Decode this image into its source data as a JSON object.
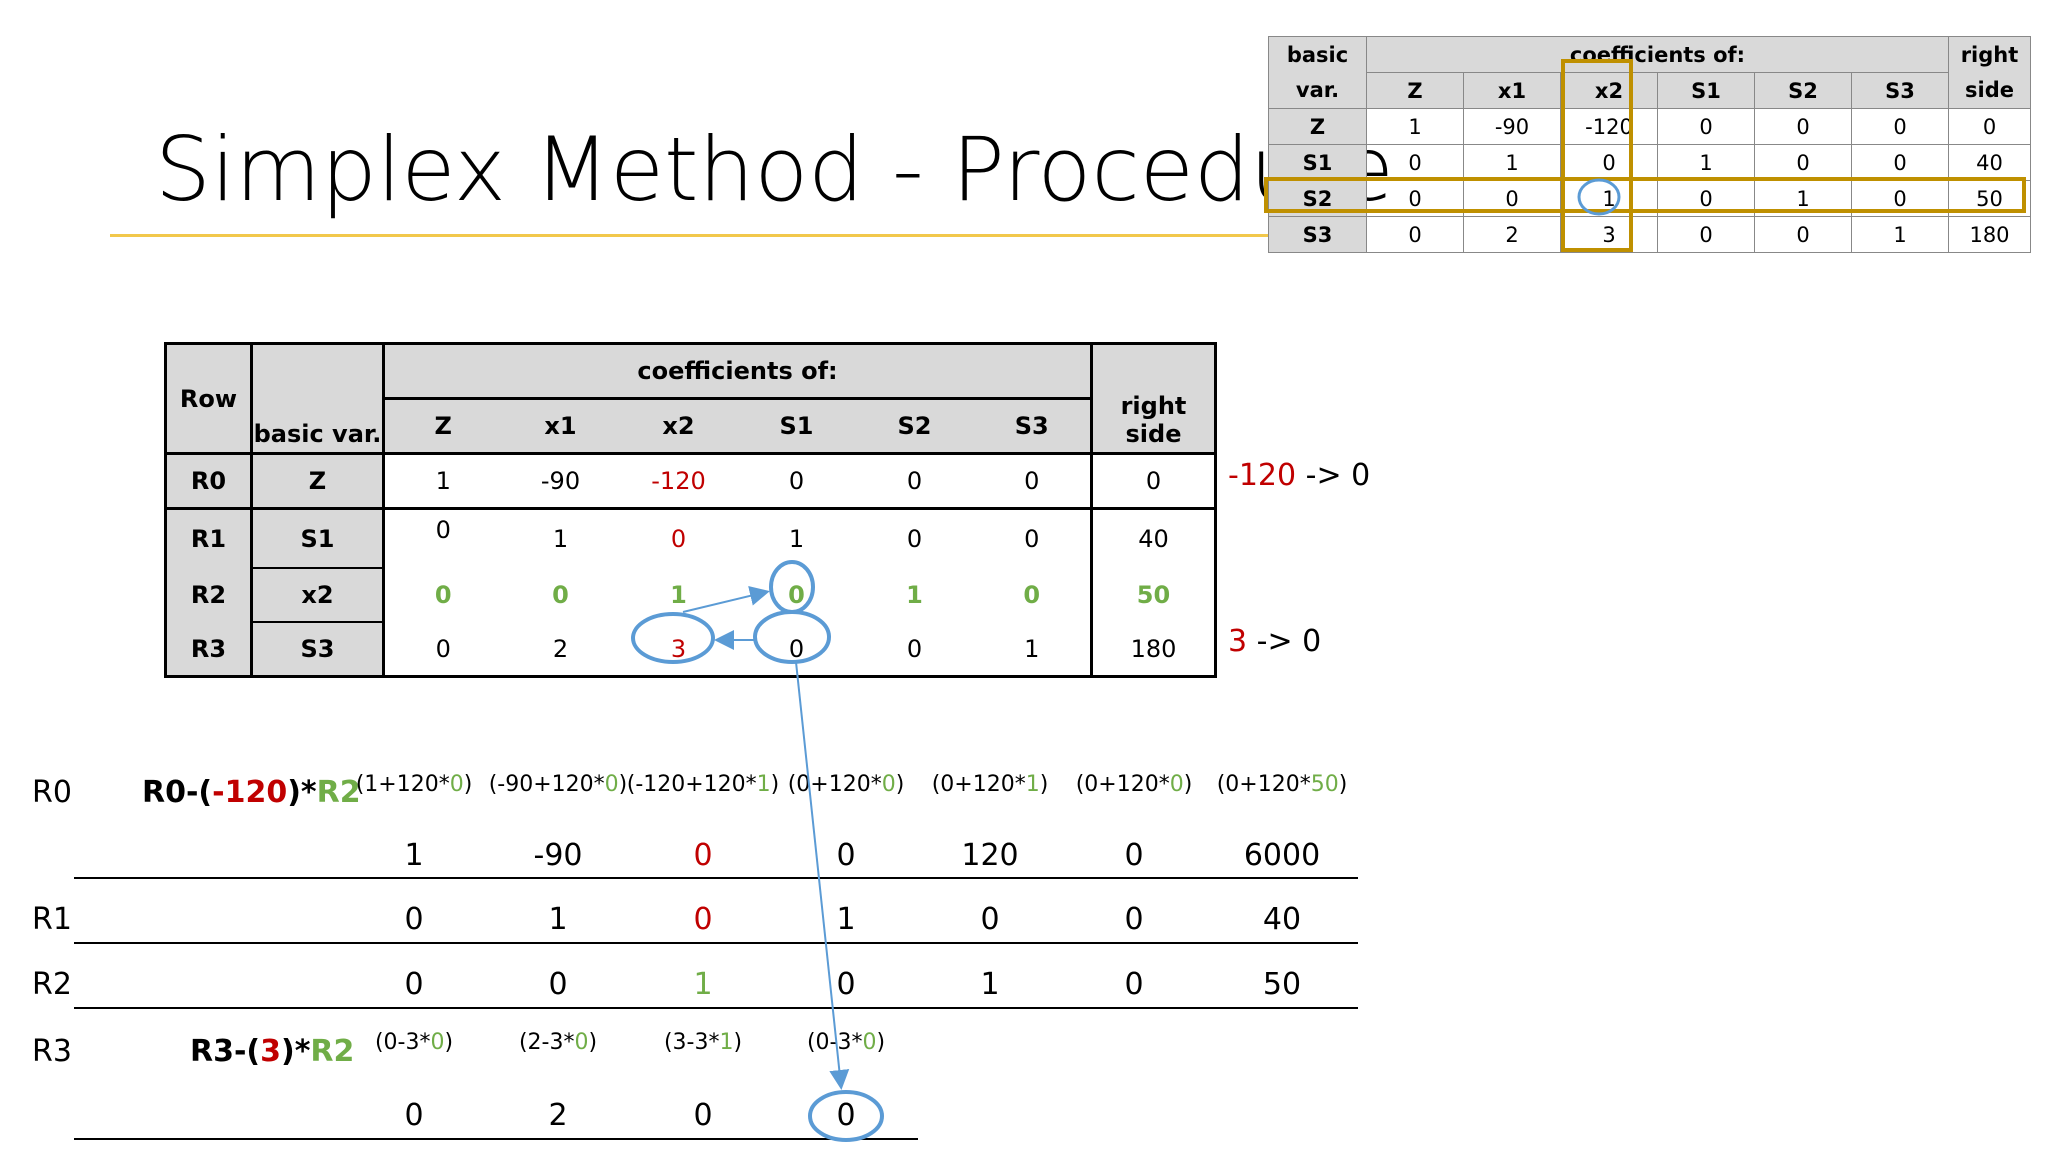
{
  "title": "Simplex Method - Procedure",
  "mini_table": {
    "headers": [
      "basic var.",
      "coefficients of:",
      "right side"
    ],
    "basic_label_1": "basic",
    "basic_label_2": "var.",
    "coef_label": "coefficients of:",
    "rhs_label_1": "right",
    "rhs_label_2": "side",
    "columns": [
      "Z",
      "x1",
      "x2",
      "S1",
      "S2",
      "S3"
    ],
    "rows": [
      {
        "basic": "Z",
        "values": [
          "1",
          "-90",
          "-120",
          "0",
          "0",
          "0"
        ],
        "rhs": "0"
      },
      {
        "basic": "S1",
        "values": [
          "0",
          "1",
          "0",
          "1",
          "0",
          "0"
        ],
        "rhs": "40"
      },
      {
        "basic": "S2",
        "values": [
          "0",
          "0",
          "1",
          "0",
          "1",
          "0"
        ],
        "rhs": "50"
      },
      {
        "basic": "S3",
        "values": [
          "0",
          "2",
          "3",
          "0",
          "0",
          "1"
        ],
        "rhs": "180"
      }
    ],
    "highlight_color": "#bf9000"
  },
  "main_table": {
    "row_label": "Row",
    "basic_label": "basic var.",
    "coef_label": "coefficients of:",
    "rhs_label": "right side",
    "columns": [
      "Z",
      "x1",
      "x2",
      "S1",
      "S2",
      "S3"
    ],
    "rows": [
      {
        "row": "R0",
        "basic": "Z",
        "values": [
          "1",
          "-90",
          "-120",
          "0",
          "0",
          "0"
        ],
        "rhs": "0"
      },
      {
        "row": "R1",
        "basic": "S1",
        "values": [
          "0",
          "1",
          "0",
          "1",
          "0",
          "0"
        ],
        "rhs": "40"
      },
      {
        "row": "R2",
        "basic": "x2",
        "values": [
          "0",
          "0",
          "1",
          "0",
          "1",
          "0"
        ],
        "rhs": "50"
      },
      {
        "row": "R3",
        "basic": "S3",
        "values": [
          "0",
          "2",
          "3",
          "0",
          "0",
          "1"
        ],
        "rhs": "180"
      }
    ],
    "note_r0": {
      "from": "-120",
      "arrow": " -> 0"
    },
    "note_r3": {
      "from": "3",
      "arrow": " -> 0"
    }
  },
  "computation": {
    "r0": {
      "label": "R0",
      "formula": {
        "a": "R0-(",
        "b": "-120",
        "c": ")*",
        "d": "R2"
      },
      "exprs": [
        {
          "pre": "(1+120*",
          "g": "0",
          "post": ")"
        },
        {
          "pre": "(-90+120*",
          "g": "0",
          "post": ")"
        },
        {
          "pre": "(-120+120*",
          "g": "1",
          "post": ")"
        },
        {
          "pre": "(0+120*",
          "g": "0",
          "post": ")"
        },
        {
          "pre": "(0+120*",
          "g": "1",
          "post": ")"
        },
        {
          "pre": "(0+120*",
          "g": "0",
          "post": ")"
        },
        {
          "pre": "(0+120*",
          "g": "50",
          "post": ")"
        }
      ],
      "results": [
        "1",
        "-90",
        "0",
        "0",
        "120",
        "0",
        "6000"
      ]
    },
    "r1": {
      "label": "R1",
      "results": [
        "0",
        "1",
        "0",
        "1",
        "0",
        "0",
        "40"
      ]
    },
    "r2": {
      "label": "R2",
      "results": [
        "0",
        "0",
        "1",
        "0",
        "1",
        "0",
        "50"
      ]
    },
    "r3": {
      "label": "R3",
      "formula": {
        "a": "R3-(",
        "b": "3",
        "c": ")*",
        "d": "R2"
      },
      "exprs": [
        {
          "pre": "(0-3*",
          "g": "0",
          "post": ")"
        },
        {
          "pre": "(2-3*",
          "g": "0",
          "post": ")"
        },
        {
          "pre": "(3-3*",
          "g": "1",
          "post": ")"
        },
        {
          "pre": "(0-3*",
          "g": "0",
          "post": ")"
        }
      ],
      "results": [
        "0",
        "2",
        "0",
        "0"
      ]
    }
  },
  "colors": {
    "red": "#c00000",
    "green": "#70ad47",
    "circle": "#5b9bd5",
    "rule": "#f2c84b"
  }
}
